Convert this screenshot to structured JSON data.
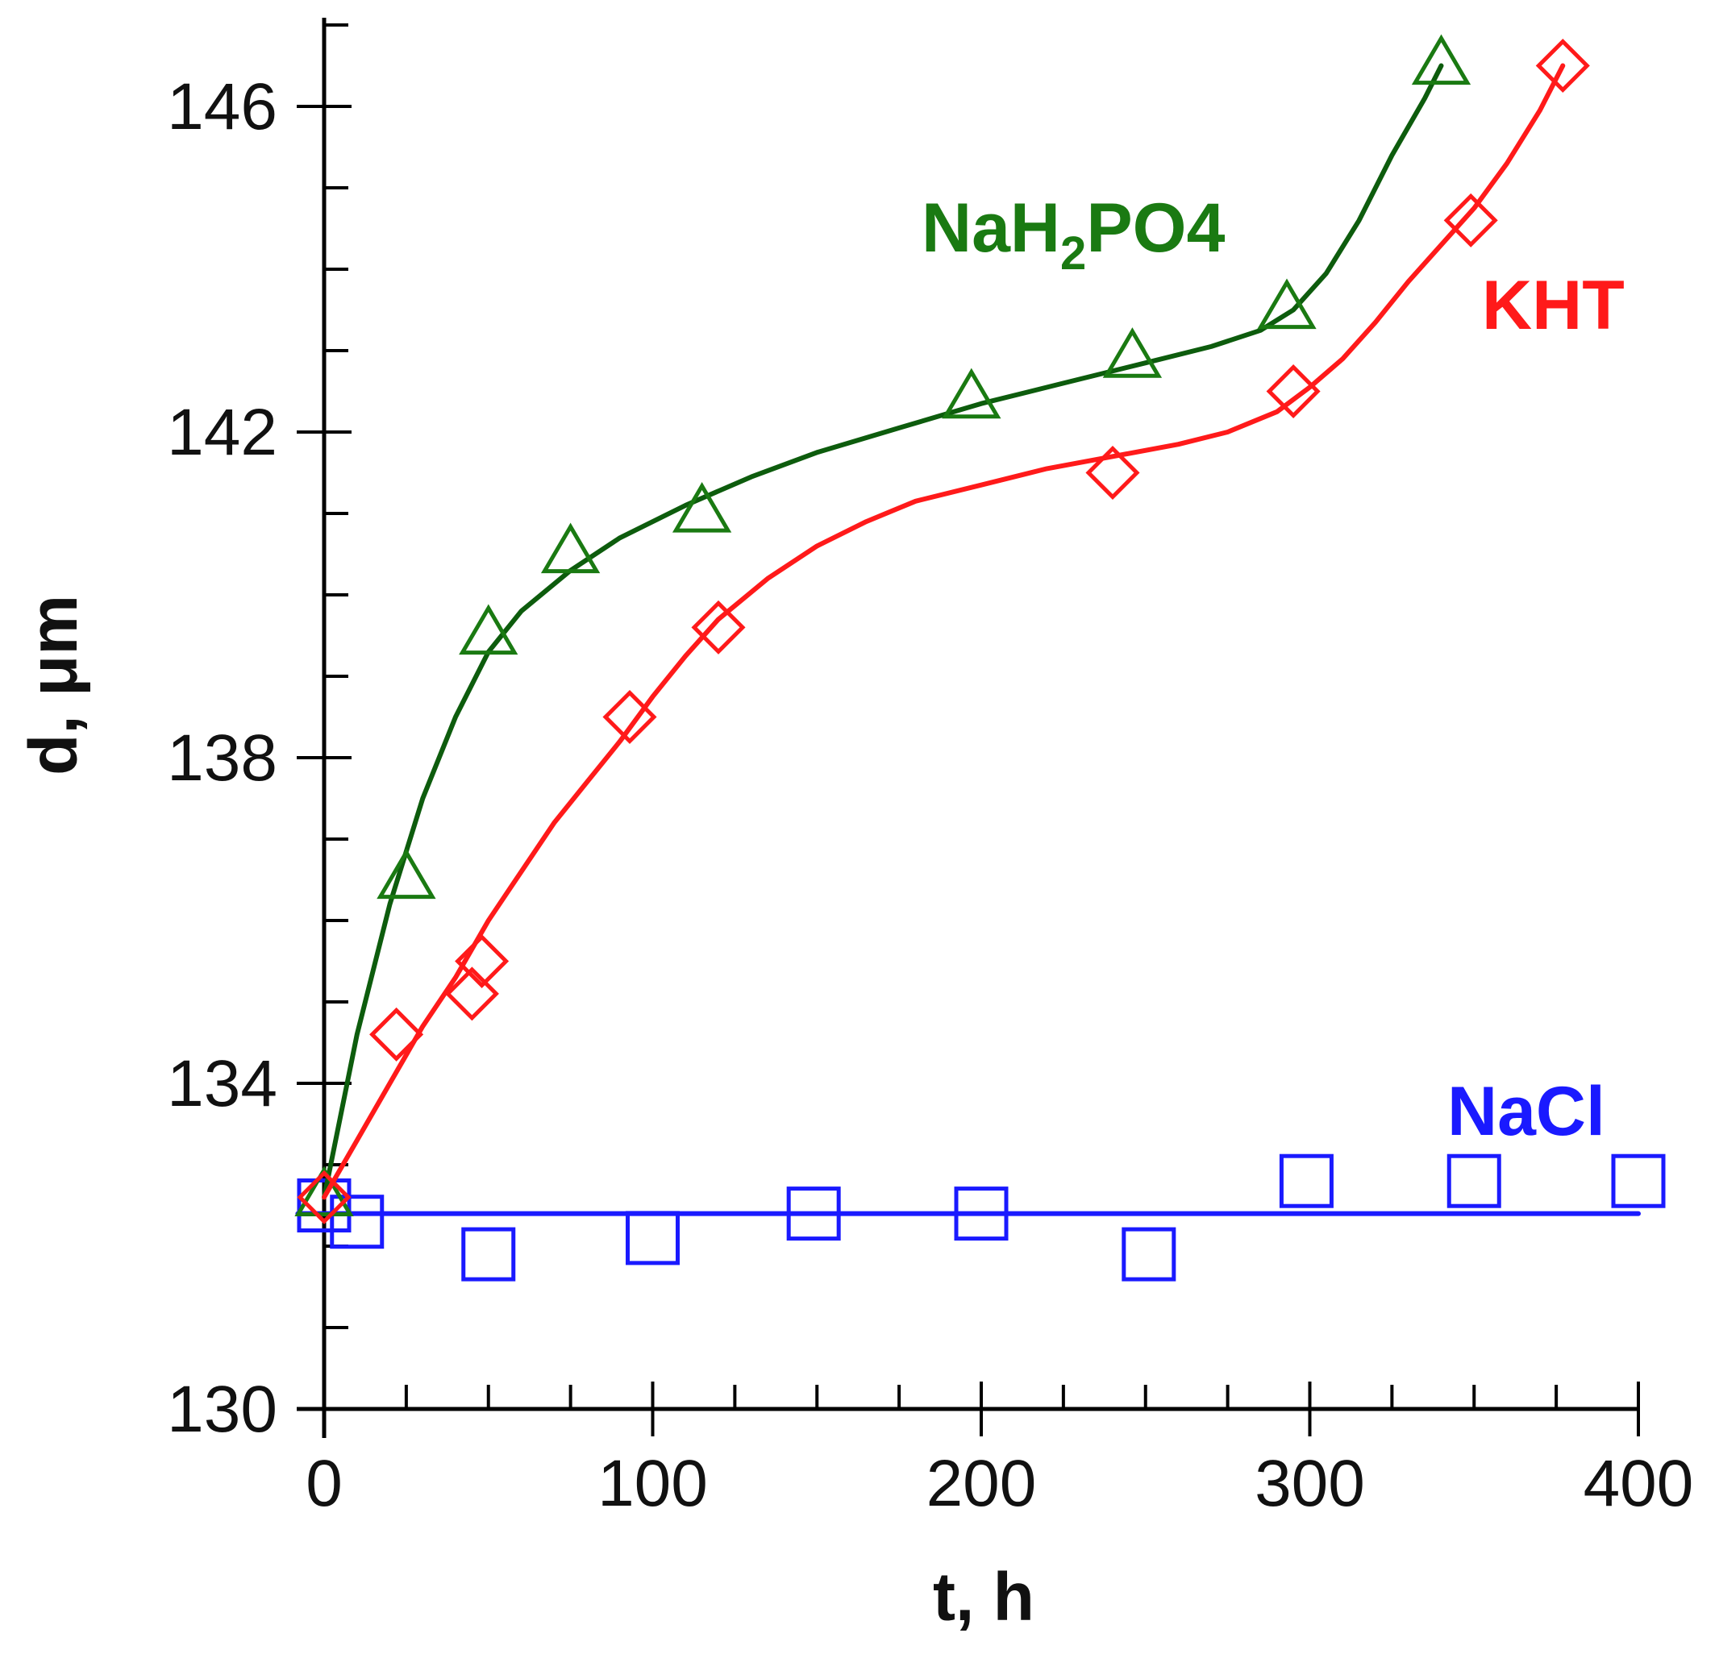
{
  "chart_data": {
    "type": "scatter",
    "title": "",
    "xlabel": "t, h",
    "ylabel": "d, μm",
    "xlim": [
      0,
      400
    ],
    "ylim": [
      130,
      147
    ],
    "x_ticks": [
      0,
      100,
      200,
      300,
      400
    ],
    "y_ticks": [
      130,
      134,
      138,
      142,
      146
    ],
    "x_minor_step": 25,
    "y_minor_step": 1,
    "grid": false,
    "legend": "inline labels",
    "series": [
      {
        "name": "NaH2PO4",
        "label_main": "NaH",
        "label_sub": "2",
        "label_rest": "PO4",
        "color": "#1a7a12",
        "line_color": "#0d5c0d",
        "marker": "triangle",
        "points": [
          {
            "x": 0,
            "y": 132.6
          },
          {
            "x": 25,
            "y": 136.5
          },
          {
            "x": 50,
            "y": 139.5
          },
          {
            "x": 75,
            "y": 140.5
          },
          {
            "x": 115,
            "y": 141.0
          },
          {
            "x": 197,
            "y": 142.4
          },
          {
            "x": 246,
            "y": 142.9
          },
          {
            "x": 293,
            "y": 143.5
          },
          {
            "x": 340,
            "y": 146.5
          }
        ],
        "fit": [
          [
            0,
            132.6
          ],
          [
            10,
            134.6
          ],
          [
            20,
            136.2
          ],
          [
            30,
            137.5
          ],
          [
            40,
            138.5
          ],
          [
            50,
            139.3
          ],
          [
            60,
            139.8
          ],
          [
            75,
            140.3
          ],
          [
            90,
            140.7
          ],
          [
            110,
            141.1
          ],
          [
            130,
            141.45
          ],
          [
            150,
            141.75
          ],
          [
            175,
            142.05
          ],
          [
            200,
            142.35
          ],
          [
            225,
            142.6
          ],
          [
            250,
            142.85
          ],
          [
            270,
            143.05
          ],
          [
            285,
            143.25
          ],
          [
            295,
            143.5
          ],
          [
            305,
            143.95
          ],
          [
            315,
            144.6
          ],
          [
            325,
            145.4
          ],
          [
            335,
            146.1
          ],
          [
            340,
            146.5
          ]
        ]
      },
      {
        "name": "KHT",
        "label_main": "KHT",
        "label_sub": "",
        "label_rest": "",
        "color": "#ff1a1a",
        "line_color": "#ff1a1a",
        "marker": "diamond",
        "points": [
          {
            "x": 0,
            "y": 132.6
          },
          {
            "x": 22,
            "y": 134.6
          },
          {
            "x": 45,
            "y": 135.1
          },
          {
            "x": 48,
            "y": 135.5
          },
          {
            "x": 93,
            "y": 138.5
          },
          {
            "x": 120,
            "y": 139.6
          },
          {
            "x": 240,
            "y": 141.5
          },
          {
            "x": 295,
            "y": 142.5
          },
          {
            "x": 349,
            "y": 144.6
          },
          {
            "x": 377,
            "y": 146.5
          }
        ],
        "fit": [
          [
            0,
            132.6
          ],
          [
            10,
            133.3
          ],
          [
            20,
            134.0
          ],
          [
            30,
            134.7
          ],
          [
            40,
            135.3
          ],
          [
            50,
            136.0
          ],
          [
            60,
            136.6
          ],
          [
            70,
            137.2
          ],
          [
            80,
            137.7
          ],
          [
            90,
            138.2
          ],
          [
            100,
            138.75
          ],
          [
            110,
            139.25
          ],
          [
            120,
            139.7
          ],
          [
            135,
            140.2
          ],
          [
            150,
            140.6
          ],
          [
            165,
            140.9
          ],
          [
            180,
            141.15
          ],
          [
            200,
            141.35
          ],
          [
            220,
            141.55
          ],
          [
            240,
            141.7
          ],
          [
            260,
            141.85
          ],
          [
            275,
            142.0
          ],
          [
            290,
            142.25
          ],
          [
            300,
            142.55
          ],
          [
            310,
            142.9
          ],
          [
            320,
            143.35
          ],
          [
            330,
            143.85
          ],
          [
            340,
            144.3
          ],
          [
            350,
            144.75
          ],
          [
            360,
            145.3
          ],
          [
            370,
            145.95
          ],
          [
            377,
            146.5
          ]
        ]
      },
      {
        "name": "NaCl",
        "label_main": "NaCl",
        "label_sub": "",
        "label_rest": "",
        "color": "#1a1aff",
        "line_color": "#1a1aff",
        "marker": "square",
        "points": [
          {
            "x": 0,
            "y": 132.5
          },
          {
            "x": 10,
            "y": 132.3
          },
          {
            "x": 50,
            "y": 131.9
          },
          {
            "x": 100,
            "y": 132.1
          },
          {
            "x": 149,
            "y": 132.4
          },
          {
            "x": 200,
            "y": 132.4
          },
          {
            "x": 251,
            "y": 131.9
          },
          {
            "x": 299,
            "y": 132.8
          },
          {
            "x": 350,
            "y": 132.8
          },
          {
            "x": 400,
            "y": 132.8
          }
        ],
        "fit": [
          [
            -8,
            132.4
          ],
          [
            400,
            132.4
          ]
        ]
      }
    ]
  }
}
